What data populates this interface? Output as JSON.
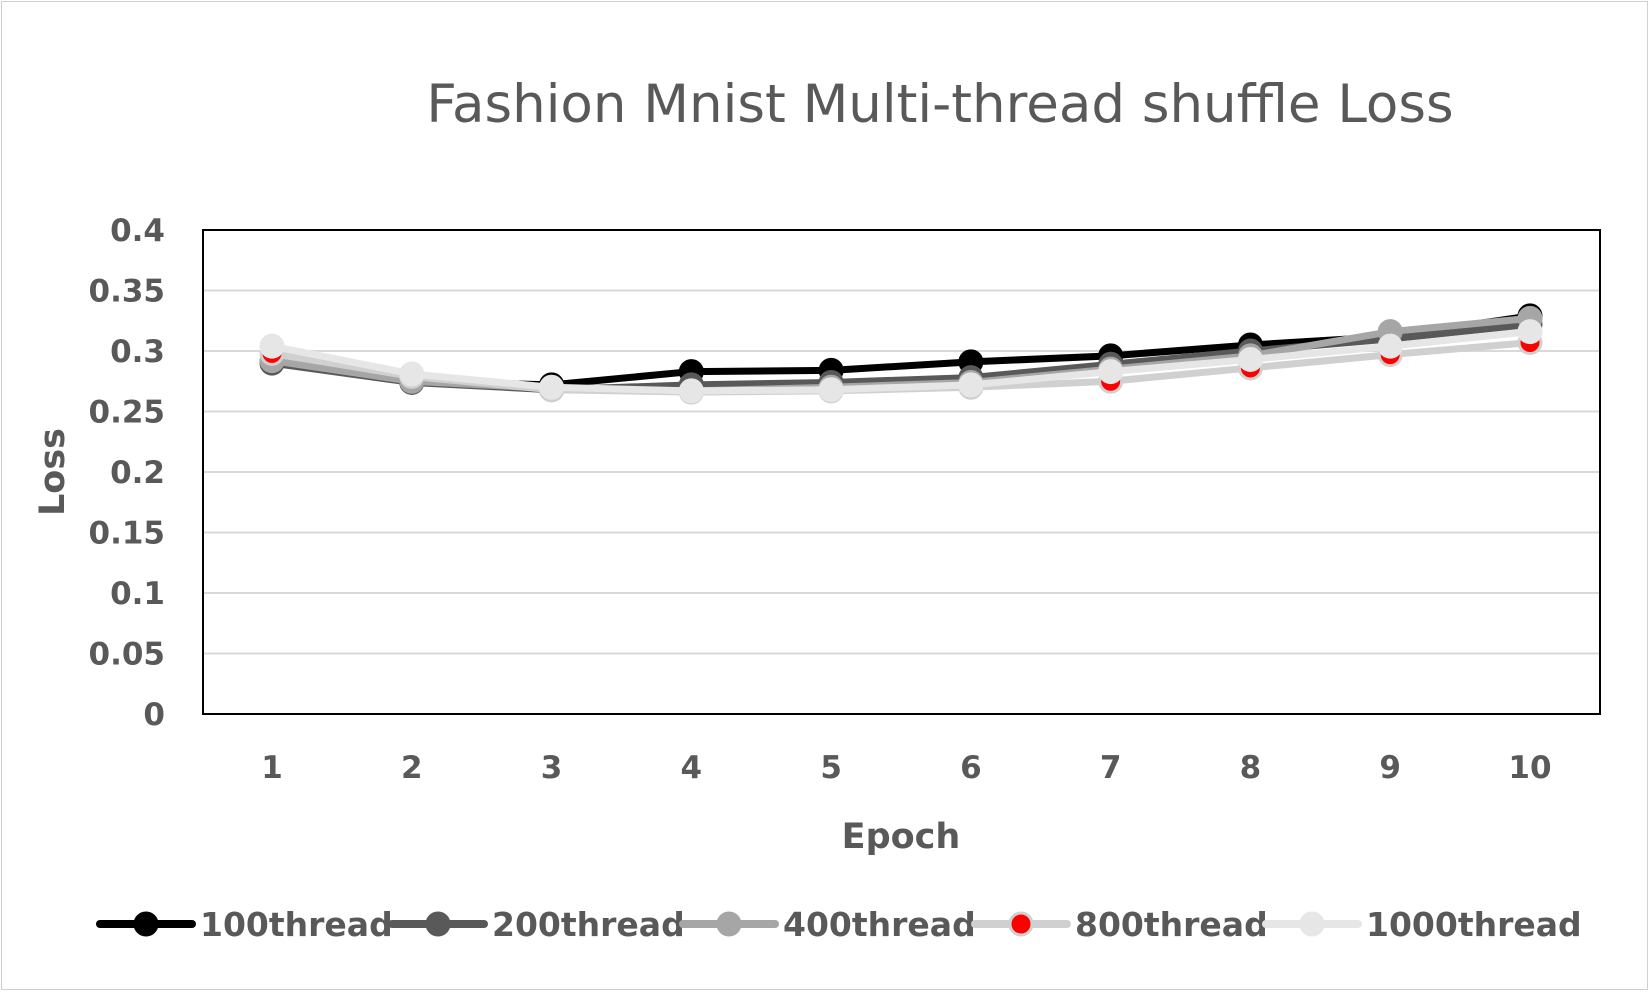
{
  "chart_data": {
    "type": "line",
    "title": "Fashion Mnist Multi-thread shuffle Loss",
    "xlabel": "Epoch",
    "ylabel": "Loss",
    "x": [
      1,
      2,
      3,
      4,
      5,
      6,
      7,
      8,
      9,
      10
    ],
    "x_tick_labels": [
      "1",
      "2",
      "3",
      "4",
      "5",
      "6",
      "7",
      "8",
      "9",
      "10"
    ],
    "y_tick_labels": [
      "0",
      "0.05",
      "0.1",
      "0.15",
      "0.2",
      "0.25",
      "0.3",
      "0.35",
      "0.4"
    ],
    "ylim": [
      0,
      0.4
    ],
    "grid": true,
    "legend_position": "bottom",
    "series": [
      {
        "name": "100thread",
        "color": "#000000",
        "marker_color": "#000000",
        "values": [
          0.291,
          0.275,
          0.272,
          0.283,
          0.284,
          0.291,
          0.296,
          0.305,
          0.312,
          0.329
        ]
      },
      {
        "name": "200thread",
        "color": "#595959",
        "marker_color": "#595959",
        "values": [
          0.29,
          0.274,
          0.268,
          0.272,
          0.274,
          0.278,
          0.289,
          0.3,
          0.31,
          0.322
        ]
      },
      {
        "name": "400thread",
        "color": "#a6a6a6",
        "marker_color": "#a6a6a6",
        "values": [
          0.292,
          0.275,
          0.269,
          0.267,
          0.27,
          0.274,
          0.285,
          0.296,
          0.316,
          0.327
        ]
      },
      {
        "name": "800thread",
        "color": "#d0d0d0",
        "marker_color": "#ff0000",
        "values": [
          0.298,
          0.279,
          0.268,
          0.266,
          0.267,
          0.27,
          0.275,
          0.286,
          0.297,
          0.307
        ]
      },
      {
        "name": "1000thread",
        "color": "#e6e6e6",
        "marker_color": "#e6e6e6",
        "values": [
          0.304,
          0.281,
          0.27,
          0.267,
          0.268,
          0.272,
          0.283,
          0.293,
          0.304,
          0.316
        ]
      }
    ]
  }
}
